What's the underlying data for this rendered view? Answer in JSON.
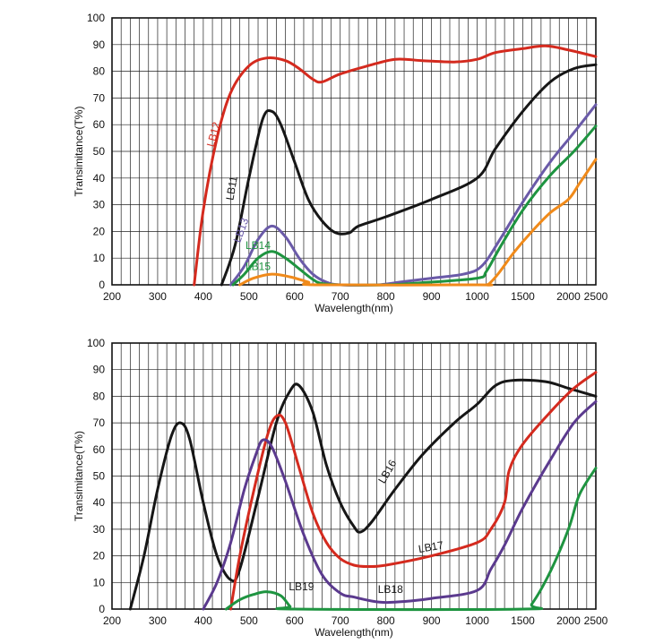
{
  "chart_data": [
    {
      "type": "line",
      "xlabel": "Wavelength(nm)",
      "ylabel": "Transimitance(T%)",
      "ylim": [
        0,
        100
      ],
      "grid": true,
      "x_categories": [
        "200",
        "300",
        "400",
        "500",
        "600",
        "700",
        "800",
        "900",
        "1000",
        "1500",
        "2000",
        "2500"
      ],
      "y_ticks": [
        "0",
        "10",
        "20",
        "30",
        "40",
        "50",
        "60",
        "70",
        "80",
        "90",
        "100"
      ],
      "series": [
        {
          "name": "LB12",
          "color": "#d42a1e",
          "label_index": 2,
          "points": [
            [
              380,
              0
            ],
            [
              400,
              28
            ],
            [
              430,
              55
            ],
            [
              460,
              72
            ],
            [
              500,
              82
            ],
            [
              540,
              85
            ],
            [
              580,
              84
            ],
            [
              610,
              81
            ],
            [
              640,
              77
            ],
            [
              660,
              76
            ],
            [
              700,
              79
            ],
            [
              760,
              82
            ],
            [
              820,
              84.5
            ],
            [
              880,
              84
            ],
            [
              950,
              83.5
            ],
            [
              1000,
              84.5
            ],
            [
              1200,
              87
            ],
            [
              1500,
              88.5
            ],
            [
              1750,
              89.5
            ],
            [
              2000,
              88
            ],
            [
              2500,
              85.5
            ]
          ]
        },
        {
          "name": "LB11",
          "color": "#161616",
          "label_index": 3,
          "points": [
            [
              440,
              0
            ],
            [
              470,
              15
            ],
            [
              500,
              40
            ],
            [
              530,
              62
            ],
            [
              550,
              65
            ],
            [
              570,
              60
            ],
            [
              600,
              46
            ],
            [
              630,
              32
            ],
            [
              660,
              24
            ],
            [
              690,
              19.5
            ],
            [
              720,
              19.5
            ],
            [
              740,
              22
            ],
            [
              800,
              25.5
            ],
            [
              900,
              32
            ],
            [
              1000,
              40
            ],
            [
              1200,
              51
            ],
            [
              1500,
              65
            ],
            [
              1800,
              76
            ],
            [
              2100,
              81
            ],
            [
              2500,
              82.5
            ]
          ]
        },
        {
          "name": "LB13",
          "color": "#6a5aa8",
          "label_index": 4,
          "points": [
            [
              460,
              0
            ],
            [
              490,
              7
            ],
            [
              520,
              17
            ],
            [
              550,
              22
            ],
            [
              580,
              18
            ],
            [
              610,
              10
            ],
            [
              640,
              4
            ],
            [
              670,
              1
            ],
            [
              700,
              0
            ],
            [
              780,
              0
            ],
            [
              830,
              1
            ],
            [
              900,
              2.5
            ],
            [
              970,
              4
            ],
            [
              1050,
              7
            ],
            [
              1250,
              17
            ],
            [
              1500,
              31
            ],
            [
              1800,
              46
            ],
            [
              2100,
              57
            ],
            [
              2500,
              67.5
            ]
          ]
        },
        {
          "name": "LB14",
          "color": "#1e9440",
          "label_index": 4,
          "points": [
            [
              465,
              0
            ],
            [
              490,
              4
            ],
            [
              520,
              10
            ],
            [
              550,
              12.5
            ],
            [
              580,
              10
            ],
            [
              610,
              6
            ],
            [
              640,
              2
            ],
            [
              660,
              0.5
            ],
            [
              700,
              0
            ],
            [
              800,
              0
            ],
            [
              880,
              0.8
            ],
            [
              1000,
              2.5
            ],
            [
              1100,
              5
            ],
            [
              1250,
              14
            ],
            [
              1500,
              28
            ],
            [
              1800,
              41
            ],
            [
              2100,
              50
            ],
            [
              2500,
              59.5
            ]
          ]
        },
        {
          "name": "LB15",
          "color": "#f08a1a",
          "label_index": 4,
          "points": [
            [
              480,
              0
            ],
            [
              510,
              2.5
            ],
            [
              550,
              4
            ],
            [
              590,
              3
            ],
            [
              630,
              1
            ],
            [
              650,
              0
            ],
            [
              1000,
              0
            ],
            [
              1100,
              0
            ],
            [
              1150,
              1
            ],
            [
              1250,
              5
            ],
            [
              1400,
              12
            ],
            [
              1600,
              20
            ],
            [
              1800,
              27
            ],
            [
              2000,
              32
            ],
            [
              2200,
              38
            ],
            [
              2500,
              47
            ]
          ]
        }
      ],
      "labels": [
        {
          "text": "LB12",
          "x": 430,
          "y": 56,
          "rotate": -75,
          "color": "#d42a1e"
        },
        {
          "text": "LB11",
          "x": 470,
          "y": 36,
          "rotate": -80,
          "color": "#161616"
        },
        {
          "text": "LB13",
          "x": 490,
          "y": 20,
          "rotate": -70,
          "color": "#6a5aa8"
        },
        {
          "text": "LB14",
          "x": 520,
          "y": 13.5,
          "rotate": 0,
          "color": "#1e9440"
        },
        {
          "text": "LB15",
          "x": 520,
          "y": 5.5,
          "rotate": 0,
          "color": "#1e9440"
        }
      ]
    },
    {
      "type": "line",
      "xlabel": "Wavelength(nm)",
      "ylabel": "Transimitance(T%)",
      "ylim": [
        0,
        100
      ],
      "grid": true,
      "x_categories": [
        "200",
        "300",
        "400",
        "500",
        "600",
        "700",
        "800",
        "900",
        "1000",
        "1500",
        "2000",
        "2500"
      ],
      "y_ticks": [
        "0",
        "10",
        "20",
        "30",
        "40",
        "50",
        "60",
        "70",
        "80",
        "90",
        "100"
      ],
      "series": [
        {
          "name": "LB16",
          "color": "#161616",
          "points": [
            [
              240,
              0
            ],
            [
              270,
              20
            ],
            [
              300,
              45
            ],
            [
              330,
              65
            ],
            [
              350,
              70
            ],
            [
              370,
              64
            ],
            [
              400,
              40
            ],
            [
              430,
              20
            ],
            [
              460,
              11
            ],
            [
              480,
              15
            ],
            [
              520,
              42
            ],
            [
              560,
              70
            ],
            [
              590,
              82
            ],
            [
              610,
              84
            ],
            [
              640,
              74
            ],
            [
              670,
              54
            ],
            [
              700,
              40
            ],
            [
              730,
              31
            ],
            [
              745,
              29
            ],
            [
              770,
              33
            ],
            [
              820,
              45
            ],
            [
              880,
              58
            ],
            [
              950,
              70
            ],
            [
              1000,
              77
            ],
            [
              1200,
              84
            ],
            [
              1400,
              86
            ],
            [
              1750,
              85.5
            ],
            [
              2000,
              83
            ],
            [
              2500,
              80
            ]
          ]
        },
        {
          "name": "LB17",
          "color": "#d42a1e",
          "points": [
            [
              460,
              0
            ],
            [
              480,
              20
            ],
            [
              510,
              44
            ],
            [
              540,
              65
            ],
            [
              560,
              72.5
            ],
            [
              580,
              70
            ],
            [
              610,
              53
            ],
            [
              640,
              36
            ],
            [
              670,
              25
            ],
            [
              700,
              19
            ],
            [
              730,
              16.5
            ],
            [
              760,
              16
            ],
            [
              800,
              16.5
            ],
            [
              900,
              20
            ],
            [
              1000,
              25
            ],
            [
              1150,
              30
            ],
            [
              1300,
              40
            ],
            [
              1350,
              52
            ],
            [
              1500,
              62
            ],
            [
              1800,
              74
            ],
            [
              2100,
              83
            ],
            [
              2500,
              89
            ]
          ]
        },
        {
          "name": "LB18",
          "color": "#5b3a8e",
          "points": [
            [
              400,
              0
            ],
            [
              430,
              10
            ],
            [
              460,
              25
            ],
            [
              490,
              45
            ],
            [
              515,
              58
            ],
            [
              530,
              63.5
            ],
            [
              550,
              61
            ],
            [
              580,
              48
            ],
            [
              620,
              28
            ],
            [
              660,
              13
            ],
            [
              700,
              6
            ],
            [
              730,
              4.5
            ],
            [
              770,
              3
            ],
            [
              800,
              2.5
            ],
            [
              850,
              3
            ],
            [
              900,
              4
            ],
            [
              1000,
              7
            ],
            [
              1150,
              15
            ],
            [
              1300,
              24
            ],
            [
              1500,
              38
            ],
            [
              1800,
              56
            ],
            [
              2100,
              70
            ],
            [
              2500,
              78
            ]
          ]
        },
        {
          "name": "LB19",
          "color": "#1e9440",
          "points": [
            [
              450,
              0
            ],
            [
              480,
              3.5
            ],
            [
              510,
              5.5
            ],
            [
              540,
              6.5
            ],
            [
              570,
              5
            ],
            [
              590,
              1
            ],
            [
              600,
              0
            ],
            [
              1500,
              0
            ],
            [
              1600,
              2
            ],
            [
              1800,
              14
            ],
            [
              2000,
              30
            ],
            [
              2200,
              43
            ],
            [
              2500,
              53
            ]
          ]
        }
      ],
      "labels": [
        {
          "text": "LB16",
          "x": 810,
          "y": 51,
          "rotate": -60,
          "color": "#161616"
        },
        {
          "text": "LB17",
          "x": 900,
          "y": 22,
          "rotate": -10,
          "color": "#161616"
        },
        {
          "text": "LB18",
          "x": 810,
          "y": 6,
          "rotate": 0,
          "color": "#161616"
        },
        {
          "text": "LB19",
          "x": 615,
          "y": 7,
          "rotate": 0,
          "color": "#161616"
        }
      ]
    }
  ]
}
